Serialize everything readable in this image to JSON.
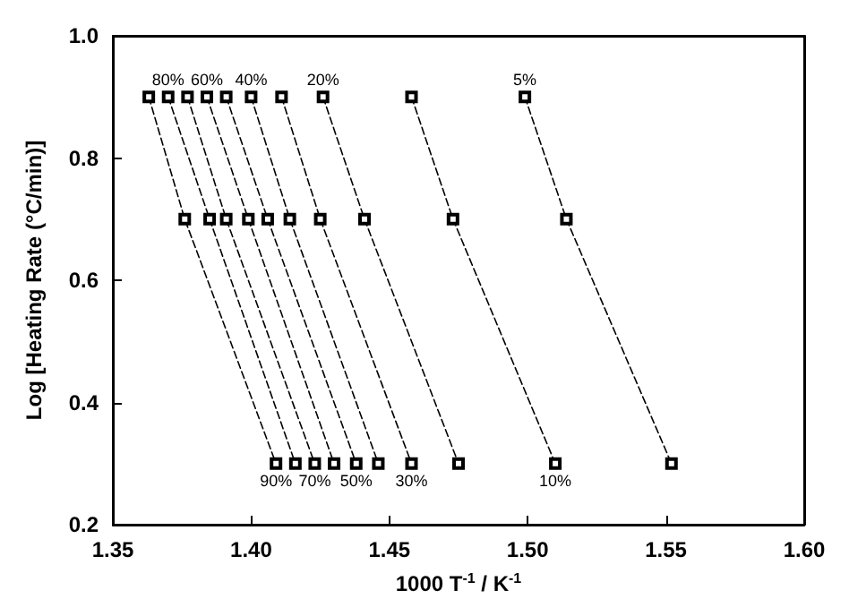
{
  "chart_data": {
    "type": "line",
    "xlabel": "1000 T$^{-1}$ / K$^{-1}$",
    "ylabel": "Log [Heating Rate (°C/min)]",
    "xlim": [
      1.35,
      1.6
    ],
    "xticks": [
      1.35,
      {
        "value": 1.4,
        "label": "1.40"
      },
      1.45,
      {
        "value": 1.5,
        "label": "1.50"
      },
      1.55,
      {
        "value": 1.6,
        "label": "1.60"
      }
    ],
    "ylim": [
      0.2,
      1.0
    ],
    "yticks": [
      0.2,
      0.4,
      0.6,
      0.8,
      {
        "value": 1.0,
        "label": "1.0"
      }
    ],
    "grid": false,
    "marker": "square",
    "line_style": "dashed",
    "series": [
      {
        "color": "#000000",
        "x": [
          1.363,
          1.376,
          1.409
        ],
        "values": [
          0.9,
          0.7,
          0.3
        ]
      },
      {
        "color": "#000000",
        "x": [
          1.37,
          1.385,
          1.416
        ],
        "values": [
          0.9,
          0.7,
          0.3
        ]
      },
      {
        "color": "#000000",
        "x": [
          1.377,
          1.391,
          1.423
        ],
        "values": [
          0.9,
          0.7,
          0.3
        ]
      },
      {
        "color": "#000000",
        "x": [
          1.384,
          1.399,
          1.43
        ],
        "values": [
          0.9,
          0.7,
          0.3
        ]
      },
      {
        "color": "#000000",
        "x": [
          1.391,
          1.406,
          1.438
        ],
        "values": [
          0.9,
          0.7,
          0.3
        ]
      },
      {
        "color": "#000000",
        "x": [
          1.4,
          1.414,
          1.446
        ],
        "values": [
          0.9,
          0.7,
          0.3
        ]
      },
      {
        "color": "#000000",
        "x": [
          1.411,
          1.425,
          1.458
        ],
        "values": [
          0.9,
          0.7,
          0.3
        ]
      },
      {
        "color": "#000000",
        "x": [
          1.426,
          1.441,
          1.475
        ],
        "values": [
          0.9,
          0.7,
          0.3
        ]
      },
      {
        "color": "#000000",
        "x": [
          1.458,
          1.473,
          1.51
        ],
        "values": [
          0.9,
          0.7,
          0.3
        ]
      },
      {
        "color": "#000000",
        "x": [
          1.499,
          1.514,
          1.552
        ],
        "values": [
          0.9,
          0.7,
          0.3
        ]
      }
    ],
    "annotations": [
      {
        "text": "90%",
        "x": 1.409,
        "y": 0.3
      },
      {
        "text": "80%",
        "x": 1.37,
        "y": 0.9
      },
      {
        "text": "70%",
        "x": 1.423,
        "y": 0.3
      },
      {
        "text": "60%",
        "x": 1.384,
        "y": 0.9
      },
      {
        "text": "50%",
        "x": 1.438,
        "y": 0.3
      },
      {
        "text": "40%",
        "x": 1.4,
        "y": 0.9
      },
      {
        "text": "30%",
        "x": 1.458,
        "y": 0.3
      },
      {
        "text": "20%",
        "x": 1.426,
        "y": 0.9
      },
      {
        "text": "10%",
        "x": 1.51,
        "y": 0.3
      },
      {
        "text": "5%",
        "x": 1.499,
        "y": 0.9
      }
    ]
  }
}
